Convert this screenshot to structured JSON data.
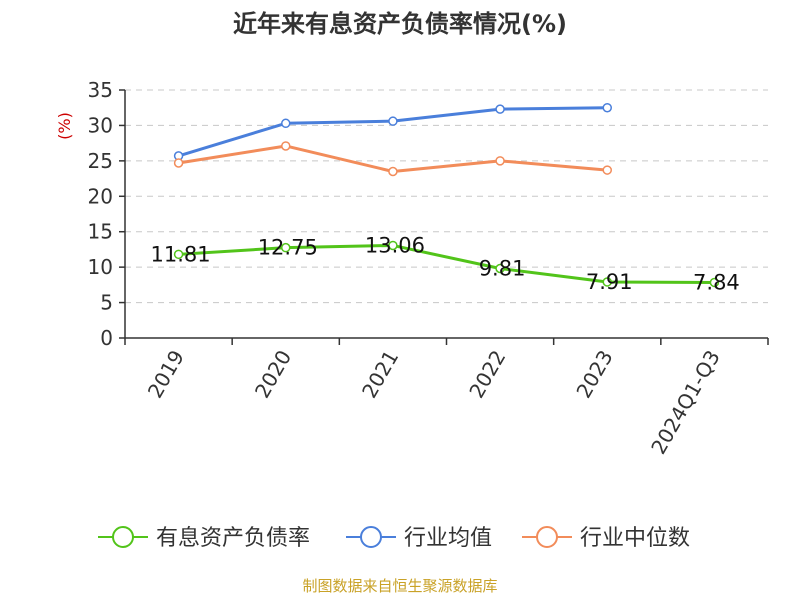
{
  "chart_data": {
    "type": "line",
    "title": "近年来有息资产负债率情况(%)",
    "ylabel": "(%)",
    "xlabel": "",
    "categories": [
      "2019",
      "2020",
      "2021",
      "2022",
      "2023",
      "2024Q1-Q3"
    ],
    "ylim": [
      0,
      35
    ],
    "yticks": [
      0,
      5,
      10,
      15,
      20,
      25,
      30,
      35
    ],
    "grid": true,
    "legend_position": "bottom",
    "series": [
      {
        "name": "有息资产负债率",
        "color": "#52c41a",
        "values": [
          11.81,
          12.75,
          13.06,
          9.81,
          7.91,
          7.84
        ],
        "data_labels": [
          "11.81",
          "12.75",
          "13.06",
          "9.81",
          "7.91",
          "7.84"
        ]
      },
      {
        "name": "行业均值",
        "color": "#4a7fdb",
        "values": [
          25.7,
          30.3,
          30.6,
          32.3,
          32.5,
          null
        ]
      },
      {
        "name": "行业中位数",
        "color": "#f28c5a",
        "values": [
          24.7,
          27.1,
          23.5,
          25.0,
          23.7,
          null
        ]
      }
    ]
  },
  "source_note": "制图数据来自恒生聚源数据库"
}
